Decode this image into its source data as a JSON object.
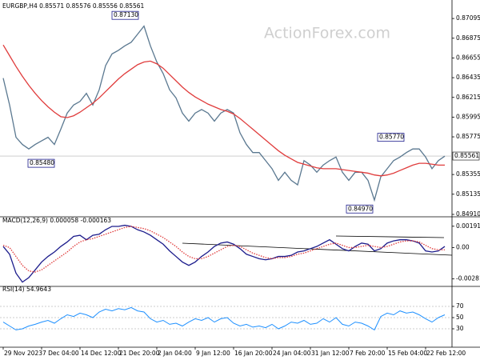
{
  "chart_data": [
    {
      "type": "line",
      "title": "EURGBP,H4 0.85571 0.85576 0.85556 0.85561",
      "watermark": "ActionForex.com",
      "categories": [
        "29 Nov 2023",
        null,
        null,
        null,
        null,
        null,
        "7 Dec 04:00",
        null,
        null,
        null,
        null,
        null,
        "14 Dec 12:00",
        null,
        null,
        null,
        null,
        null,
        "21 Dec 20:00",
        null,
        null,
        null,
        null,
        null,
        "2 Jan 04:00",
        null,
        null,
        null,
        null,
        null,
        "9 Jan 12:00",
        null,
        null,
        null,
        null,
        null,
        "16 Jan 20:00",
        null,
        null,
        null,
        null,
        null,
        "24 Jan 04:00",
        null,
        null,
        null,
        null,
        null,
        "31 Jan 12:00",
        null,
        null,
        null,
        null,
        null,
        "7 Feb 20:00",
        null,
        null,
        null,
        null,
        null,
        "15 Feb 04:00",
        null,
        null,
        null,
        null,
        null,
        "22 Feb 12:00",
        null,
        null,
        null
      ],
      "series": [
        {
          "color": "#5a7890",
          "line_style": "solid",
          "values": [
            0.8643,
            0.8613,
            0.8577,
            0.8569,
            0.8564,
            0.8569,
            0.8573,
            0.8577,
            0.8569,
            0.8586,
            0.8604,
            0.8613,
            0.8617,
            0.8626,
            0.8613,
            0.863,
            0.8657,
            0.867,
            0.8674,
            0.8679,
            0.8683,
            0.8692,
            0.8701,
            0.8679,
            0.8661,
            0.8648,
            0.863,
            0.8621,
            0.8604,
            0.8595,
            0.8604,
            0.8608,
            0.8604,
            0.8595,
            0.8604,
            0.8608,
            0.8604,
            0.8582,
            0.8569,
            0.856,
            0.856,
            0.8551,
            0.8542,
            0.8529,
            0.8538,
            0.8529,
            0.8524,
            0.8551,
            0.8546,
            0.8538,
            0.8546,
            0.8551,
            0.8555,
            0.8538,
            0.8529,
            0.8538,
            0.8538,
            0.8529,
            0.8507,
            0.8533,
            0.8542,
            0.8551,
            0.8555,
            0.856,
            0.8564,
            0.8564,
            0.8555,
            0.8542,
            0.8551,
            0.8556
          ]
        },
        {
          "color": "#e03c3c",
          "line_style": "solid",
          "values": [
            0.868,
            0.8668,
            0.8656,
            0.8645,
            0.8635,
            0.8626,
            0.8618,
            0.8611,
            0.8605,
            0.86,
            0.8599,
            0.8601,
            0.8605,
            0.861,
            0.8615,
            0.8621,
            0.8628,
            0.8635,
            0.8642,
            0.8648,
            0.8653,
            0.8658,
            0.8661,
            0.8662,
            0.8659,
            0.8654,
            0.8647,
            0.864,
            0.8633,
            0.8627,
            0.8622,
            0.8618,
            0.8614,
            0.8611,
            0.8608,
            0.8606,
            0.8603,
            0.8598,
            0.8592,
            0.8586,
            0.858,
            0.8574,
            0.8568,
            0.8562,
            0.8557,
            0.8553,
            0.8549,
            0.8547,
            0.8545,
            0.8543,
            0.8542,
            0.8542,
            0.8542,
            0.8541,
            0.854,
            0.8539,
            0.8538,
            0.8537,
            0.8535,
            0.8534,
            0.8535,
            0.8537,
            0.854,
            0.8543,
            0.8546,
            0.8548,
            0.8548,
            0.8547,
            0.8546,
            0.8546
          ]
        }
      ],
      "ylim": [
        0.8491,
        0.8723
      ],
      "yticks": [
        0.87095,
        0.86875,
        0.86655,
        0.86435,
        0.86215,
        0.85995,
        0.85775,
        0.85355,
        0.85135,
        {
          "value": 0.8491,
          "label": "0.84910"
        }
      ],
      "grid": false,
      "last_price": 0.85561,
      "annotations": [
        {
          "value": 0.8713,
          "label": "0.87130"
        },
        {
          "value": 0.8548,
          "label": "0.85480"
        },
        {
          "value": 0.8497,
          "label": "0.84970"
        },
        {
          "value": 0.8577,
          "label": "0.85770"
        }
      ]
    },
    {
      "type": "line",
      "title": "MACD(12,26,9) 0.000058 -0.000163",
      "series": [
        {
          "color": "#1c1c8c",
          "line_style": "solid",
          "values": [
            0.0001,
            -0.0006,
            -0.0023,
            -0.0031,
            -0.0027,
            -0.002,
            -0.0013,
            -0.0008,
            -0.0004,
            0.0001,
            0.0005,
            0.001,
            0.0011,
            0.0007,
            0.0011,
            0.0012,
            0.0016,
            0.0019,
            0.0019,
            0.002,
            0.0019,
            0.0016,
            0.0014,
            0.0011,
            0.0007,
            0.0003,
            -0.0003,
            -0.0008,
            -0.0013,
            -0.0016,
            -0.0013,
            -0.0008,
            -0.0004,
            0.0001,
            0.0004,
            0.0005,
            0.0003,
            -0.0001,
            -0.0006,
            -0.0008,
            -0.001,
            -0.0011,
            -0.001,
            -0.0008,
            -0.0008,
            -0.0007,
            -0.0004,
            -0.0003,
            -0.0001,
            0.0001,
            0.0004,
            0.0007,
            0.0003,
            -0.0001,
            -0.0003,
            0.0001,
            0.0004,
            0.0003,
            -0.0003,
            -0.0001,
            0.0004,
            0.0006,
            0.0007,
            0.0007,
            0.0006,
            0.0004,
            -0.0003,
            -0.0004,
            -0.0003,
            0.0001
          ]
        },
        {
          "color": "#e03c3c",
          "line_style": "dotted",
          "values": [
            0.0002,
            0.0,
            -0.0008,
            -0.0016,
            -0.0021,
            -0.0022,
            -0.002,
            -0.0016,
            -0.0012,
            -0.0008,
            -0.0004,
            0.0001,
            0.0005,
            0.0007,
            0.0008,
            0.001,
            0.0012,
            0.0014,
            0.0016,
            0.0018,
            0.0019,
            0.0018,
            0.0017,
            0.0015,
            0.0012,
            0.0009,
            0.0005,
            0.0001,
            -0.0004,
            -0.0008,
            -0.001,
            -0.001,
            -0.0008,
            -0.0005,
            -0.0002,
            0.0001,
            0.0002,
            0.0001,
            -0.0002,
            -0.0005,
            -0.0007,
            -0.0009,
            -0.001,
            -0.0009,
            -0.0009,
            -0.0008,
            -0.0006,
            -0.0005,
            -0.0003,
            -0.0001,
            0.0001,
            0.0003,
            0.0004,
            0.0002,
            0.0,
            0.0,
            0.0001,
            0.0002,
            0.0001,
            0.0,
            0.0001,
            0.0003,
            0.0005,
            0.0006,
            0.0006,
            0.0005,
            0.0002,
            -0.0001,
            -0.0002,
            -0.0002
          ]
        }
      ],
      "ylim": [
        -0.0032,
        0.0024
      ],
      "yticks": [
        0.001911,
        {
          "value": 0,
          "label": "0.00"
        },
        -0.002816
      ],
      "grid": false
    },
    {
      "type": "line",
      "title": "RSI(14) 54.9643",
      "series": [
        {
          "color": "#1e90ff",
          "line_style": "solid",
          "values": [
            42,
            35,
            28,
            30,
            35,
            38,
            42,
            45,
            40,
            48,
            55,
            52,
            58,
            55,
            50,
            60,
            65,
            62,
            66,
            64,
            68,
            62,
            60,
            48,
            42,
            45,
            38,
            40,
            35,
            42,
            48,
            45,
            50,
            42,
            48,
            50,
            40,
            35,
            38,
            33,
            35,
            32,
            38,
            30,
            35,
            42,
            40,
            45,
            38,
            40,
            48,
            42,
            50,
            38,
            35,
            42,
            40,
            35,
            28,
            52,
            58,
            55,
            62,
            58,
            60,
            55,
            48,
            42,
            50,
            55
          ]
        }
      ],
      "ylim": [
        0,
        100
      ],
      "yticks": [
        70,
        50,
        30
      ],
      "grid": true
    }
  ]
}
